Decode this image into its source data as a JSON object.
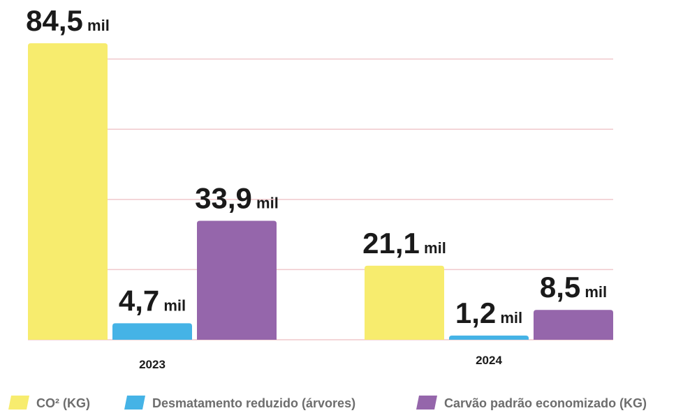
{
  "chart_data": {
    "type": "bar",
    "categories": [
      "2023",
      "2024"
    ],
    "series": [
      {
        "name": "CO² (KG)",
        "color": "#f7ec6e",
        "values": [
          84.5,
          21.1
        ],
        "value_labels": [
          "84,5 mil",
          "21,1 mil"
        ]
      },
      {
        "name": "Desmatamento reduzido (árvores)",
        "color": "#45b3e6",
        "values": [
          4.7,
          1.2
        ],
        "value_labels": [
          "4,7 mil",
          "1,2 mil"
        ]
      },
      {
        "name": "Carvão padrão economizado (KG)",
        "color": "#9566ab",
        "values": [
          33.9,
          8.5
        ],
        "value_labels": [
          "33,9 mil",
          "8,5 mil"
        ]
      }
    ],
    "ylim": [
      0,
      84.5
    ],
    "yticks": [
      20,
      40,
      60,
      80
    ],
    "grid": true,
    "grid_color": "#f0c8cc",
    "legend": "bottom"
  }
}
